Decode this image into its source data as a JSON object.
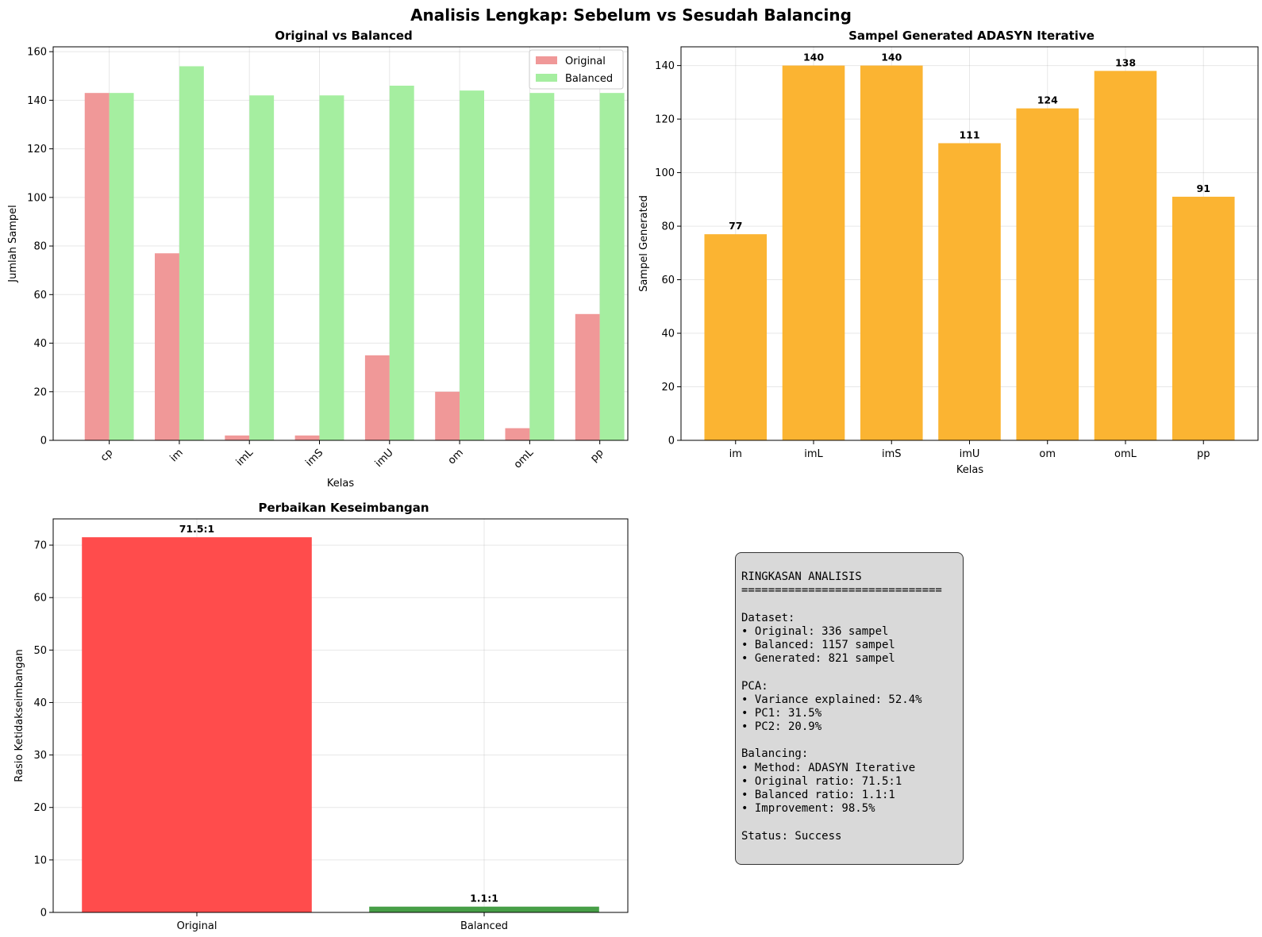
{
  "figure": {
    "title": "Analisis Lengkap: Sebelum vs Sesudah Balancing"
  },
  "colors": {
    "original": "#f09898",
    "balanced": "#a5eea0",
    "generated": "#fbb432",
    "ratio_original": "#ff4c4c",
    "ratio_balanced": "#479f47",
    "summary_bg": "#d9d9d9"
  },
  "chart_data": [
    {
      "type": "bar",
      "title": "Original vs Balanced",
      "xlabel": "Kelas",
      "ylabel": "Jumlah Sampel",
      "categories": [
        "cp",
        "im",
        "imL",
        "imS",
        "imU",
        "om",
        "omL",
        "pp"
      ],
      "series": [
        {
          "name": "Original",
          "values": [
            143,
            77,
            2,
            2,
            35,
            20,
            5,
            52
          ]
        },
        {
          "name": "Balanced",
          "values": [
            143,
            154,
            142,
            142,
            146,
            144,
            143,
            143
          ]
        }
      ],
      "ylim": [
        0,
        162
      ],
      "yticks": [
        0,
        20,
        40,
        60,
        80,
        100,
        120,
        140,
        160
      ],
      "grid": true,
      "legend": "top-right",
      "xtick_rotation": 45
    },
    {
      "type": "bar",
      "title": "Sampel Generated ADASYN Iterative",
      "xlabel": "Kelas",
      "ylabel": "Sampel Generated",
      "categories": [
        "im",
        "imL",
        "imS",
        "imU",
        "om",
        "omL",
        "pp"
      ],
      "values": [
        77,
        140,
        140,
        111,
        124,
        138,
        91
      ],
      "data_labels": [
        "77",
        "140",
        "140",
        "111",
        "124",
        "138",
        "91"
      ],
      "ylim": [
        0,
        147
      ],
      "yticks": [
        0,
        20,
        40,
        60,
        80,
        100,
        120,
        140
      ],
      "grid": true
    },
    {
      "type": "bar",
      "title": "Perbaikan Keseimbangan",
      "xlabel": "",
      "ylabel": "Rasio Ketidakseimbangan",
      "categories": [
        "Original",
        "Balanced"
      ],
      "values": [
        71.5,
        1.1
      ],
      "data_labels": [
        "71.5:1",
        "1.1:1"
      ],
      "ylim": [
        0,
        75
      ],
      "yticks": [
        0,
        10,
        20,
        30,
        40,
        50,
        60,
        70
      ],
      "grid": true
    }
  ],
  "summary": {
    "lines": [
      "RINGKASAN ANALISIS",
      "==============================",
      "",
      "Dataset:",
      "• Original: 336 sampel",
      "• Balanced: 1157 sampel",
      "• Generated: 821 sampel",
      "",
      "PCA:",
      "• Variance explained: 52.4%",
      "• PC1: 31.5%",
      "• PC2: 20.9%",
      "",
      "Balancing:",
      "• Method: ADASYN Iterative",
      "• Original ratio: 71.5:1",
      "• Balanced ratio: 1.1:1",
      "• Improvement: 98.5%",
      "",
      "Status: Success"
    ]
  }
}
